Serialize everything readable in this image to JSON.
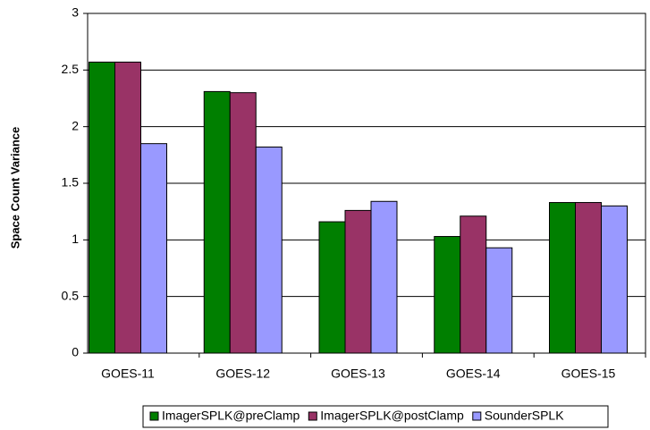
{
  "chart_data": {
    "type": "bar",
    "ylabel": "Space Count Variance",
    "categories": [
      "GOES-11",
      "GOES-12",
      "GOES-13",
      "GOES-14",
      "GOES-15"
    ],
    "series": [
      {
        "name": "ImagerSPLK@preClamp",
        "color": "#007f00",
        "values": [
          2.57,
          2.31,
          1.16,
          1.03,
          1.33
        ]
      },
      {
        "name": "ImagerSPLK@postClamp",
        "color": "#993366",
        "values": [
          2.57,
          2.3,
          1.26,
          1.21,
          1.33
        ]
      },
      {
        "name": "SounderSPLK",
        "color": "#9999ff",
        "values": [
          1.85,
          1.82,
          1.34,
          0.93,
          1.3
        ]
      }
    ],
    "ylim": [
      0,
      3
    ],
    "yticks": [
      0,
      0.5,
      1,
      1.5,
      2,
      2.5,
      3
    ],
    "grid": true,
    "legend": "bottom"
  }
}
